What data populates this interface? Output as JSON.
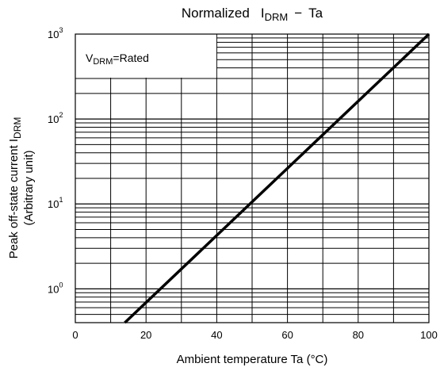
{
  "chart_data": {
    "type": "line",
    "title": "Normalized I_DRM − Ta",
    "title_parts": {
      "main": "Normalized",
      "symbol": "I",
      "symbol_sub": "DRM",
      "dash": "−",
      "tail": "Ta"
    },
    "xlabel": "Ambient temperature Ta (°C)",
    "ylabel": "Peak off-state current I_DRM (Arbitrary unit)",
    "ylabel_parts": {
      "main": "Peak off-state current I",
      "sub": "DRM",
      "unit": "(Arbitrary unit)"
    },
    "xlim": [
      0,
      100
    ],
    "ylim": [
      0.4,
      1000
    ],
    "yscale": "log",
    "grid": true,
    "x_ticks": [
      "0",
      "20",
      "40",
      "60",
      "80",
      "100"
    ],
    "y_ticks": [
      {
        "base": "10",
        "exp": "0"
      },
      {
        "base": "10",
        "exp": "1"
      },
      {
        "base": "10",
        "exp": "2"
      },
      {
        "base": "10",
        "exp": "3"
      }
    ],
    "annotation": {
      "main": "V",
      "sub": "DRM",
      "tail": "=Rated"
    },
    "series": [
      {
        "x": [
          14,
          100
        ],
        "y": [
          0.4,
          1000
        ]
      }
    ]
  }
}
